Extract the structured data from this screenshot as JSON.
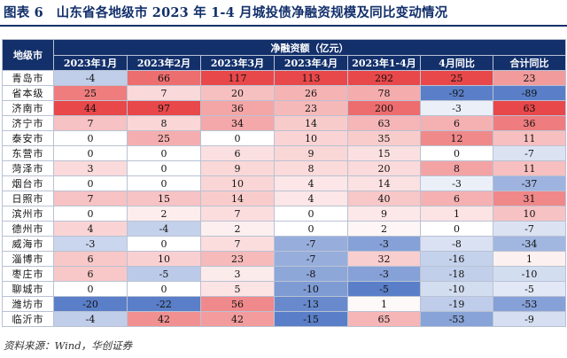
{
  "title": "图表 6　山东省各地级市 2023 年 1-4 月城投债净融资规模及同比变动情况",
  "table": {
    "city_header": "地级市",
    "group_header": "净融资额（亿元）",
    "columns": [
      "2023年1月",
      "2023年2月",
      "2023年3月",
      "2023年4月",
      "2023年1-4月",
      "4月同比",
      "合计同比"
    ],
    "rows": [
      {
        "city": "青岛市",
        "values": [
          "-4",
          "66",
          "117",
          "113",
          "292",
          "25",
          "23"
        ]
      },
      {
        "city": "省本级",
        "values": [
          "25",
          "7",
          "20",
          "26",
          "78",
          "-92",
          "-89"
        ]
      },
      {
        "city": "济南市",
        "values": [
          "44",
          "97",
          "36",
          "23",
          "200",
          "-3",
          "63"
        ]
      },
      {
        "city": "济宁市",
        "values": [
          "7",
          "8",
          "34",
          "14",
          "63",
          "6",
          "36"
        ]
      },
      {
        "city": "泰安市",
        "values": [
          "0",
          "25",
          "0",
          "10",
          "35",
          "12",
          "11"
        ]
      },
      {
        "city": "东营市",
        "values": [
          "0",
          "0",
          "6",
          "9",
          "15",
          "0",
          "-7"
        ]
      },
      {
        "city": "菏泽市",
        "values": [
          "3",
          "0",
          "9",
          "8",
          "20",
          "8",
          "11"
        ]
      },
      {
        "city": "烟台市",
        "values": [
          "0",
          "0",
          "10",
          "4",
          "14",
          "-3",
          "-37"
        ]
      },
      {
        "city": "日照市",
        "values": [
          "7",
          "15",
          "14",
          "4",
          "40",
          "6",
          "31"
        ]
      },
      {
        "city": "滨州市",
        "values": [
          "0",
          "2",
          "7",
          "0",
          "9",
          "1",
          "10"
        ]
      },
      {
        "city": "德州市",
        "values": [
          "4",
          "-4",
          "2",
          "0",
          "2",
          "0",
          "-7"
        ]
      },
      {
        "city": "威海市",
        "values": [
          "-3",
          "0",
          "7",
          "-7",
          "-3",
          "-8",
          "-34"
        ]
      },
      {
        "city": "淄博市",
        "values": [
          "6",
          "10",
          "23",
          "-7",
          "32",
          "-16",
          "1"
        ]
      },
      {
        "city": "枣庄市",
        "values": [
          "6",
          "-5",
          "3",
          "-8",
          "-3",
          "-18",
          "-10"
        ]
      },
      {
        "city": "聊城市",
        "values": [
          "0",
          "0",
          "5",
          "-10",
          "-5",
          "-10",
          "-5"
        ]
      },
      {
        "city": "潍坊市",
        "values": [
          "-20",
          "-22",
          "56",
          "-13",
          "1",
          "-19",
          "-53"
        ]
      },
      {
        "city": "临沂市",
        "values": [
          "-4",
          "42",
          "42",
          "-15",
          "65",
          "-53",
          "-9"
        ]
      }
    ]
  },
  "colors": {
    "header_bg": "#13306b",
    "header_text": "#ffffff",
    "positive": "#e8484a",
    "negative": "#5a7fc8",
    "neutral": "#ffffff",
    "border": "#b9c2d3"
  },
  "source": "资料来源：Wind，华创证券"
}
